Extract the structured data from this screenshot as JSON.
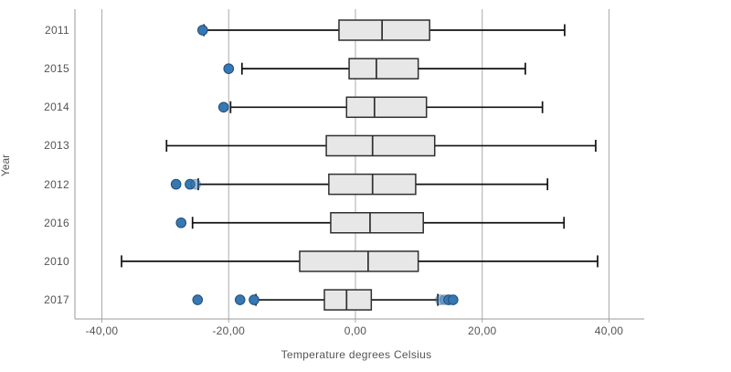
{
  "chart_data": {
    "type": "boxplot",
    "orientation": "horizontal",
    "title": "",
    "xlabel": "Temperature degrees Celsius",
    "ylabel": "Year",
    "grid": true,
    "xlim": [
      -44.3,
      45.6
    ],
    "x_ticks": [
      {
        "value": -40,
        "label": "-40,00"
      },
      {
        "value": -20,
        "label": "-20,00"
      },
      {
        "value": 0,
        "label": "0,00"
      },
      {
        "value": 20,
        "label": "20,00"
      },
      {
        "value": 40,
        "label": "40,00"
      }
    ],
    "categories": [
      "2011",
      "2015",
      "2014",
      "2013",
      "2012",
      "2016",
      "2010",
      "2017"
    ],
    "series": [
      {
        "year": "2011",
        "whisker_low": -23.9,
        "q1": -2.6,
        "median": 4.2,
        "q3": 11.7,
        "whisker_high": 33.0,
        "outliers": [
          {
            "value": -24.1,
            "faint": false
          }
        ]
      },
      {
        "year": "2015",
        "whisker_low": -17.9,
        "q1": -1.0,
        "median": 3.3,
        "q3": 9.9,
        "whisker_high": 26.8,
        "outliers": [
          {
            "value": -20.0,
            "faint": false
          }
        ]
      },
      {
        "year": "2014",
        "whisker_low": -19.7,
        "q1": -1.4,
        "median": 3.0,
        "q3": 11.2,
        "whisker_high": 29.5,
        "outliers": [
          {
            "value": -20.8,
            "faint": false
          }
        ]
      },
      {
        "year": "2013",
        "whisker_low": -29.8,
        "q1": -4.6,
        "median": 2.7,
        "q3": 12.5,
        "whisker_high": 37.9,
        "outliers": []
      },
      {
        "year": "2012",
        "whisker_low": -24.8,
        "q1": -4.2,
        "median": 2.7,
        "q3": 9.5,
        "whisker_high": 30.3,
        "outliers": [
          {
            "value": -28.3,
            "faint": false
          },
          {
            "value": -26.1,
            "faint": false
          },
          {
            "value": -25.2,
            "faint": true
          }
        ]
      },
      {
        "year": "2016",
        "whisker_low": -25.7,
        "q1": -3.9,
        "median": 2.3,
        "q3": 10.7,
        "whisker_high": 32.9,
        "outliers": [
          {
            "value": -27.5,
            "faint": false
          }
        ]
      },
      {
        "year": "2010",
        "whisker_low": -36.9,
        "q1": -8.8,
        "median": 2.0,
        "q3": 9.9,
        "whisker_high": 38.2,
        "outliers": []
      },
      {
        "year": "2017",
        "whisker_low": -15.7,
        "q1": -4.9,
        "median": -1.4,
        "q3": 2.5,
        "whisker_high": 13.0,
        "outliers": [
          {
            "value": -24.9,
            "faint": false
          },
          {
            "value": -18.2,
            "faint": false
          },
          {
            "value": -16.0,
            "faint": false
          },
          {
            "value": 13.4,
            "faint": true
          },
          {
            "value": 14.1,
            "faint": true
          },
          {
            "value": 14.7,
            "faint": false
          },
          {
            "value": 15.4,
            "faint": false
          }
        ]
      }
    ],
    "colors": {
      "box_fill": "#e7e7e7",
      "box_stroke": "#2f2f2f",
      "whisker": "#111111",
      "outlier_fill": "#3878b1",
      "outlier_stroke": "#1d4e7c",
      "gridline": "#ababab",
      "axis_line": "#9a9a9a",
      "text": "#545454"
    }
  }
}
